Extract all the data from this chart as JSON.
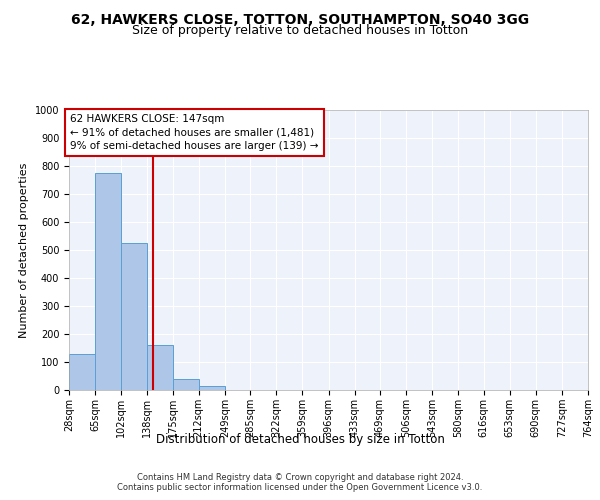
{
  "title1": "62, HAWKERS CLOSE, TOTTON, SOUTHAMPTON, SO40 3GG",
  "title2": "Size of property relative to detached houses in Totton",
  "xlabel": "Distribution of detached houses by size in Totton",
  "ylabel": "Number of detached properties",
  "bar_values": [
    130,
    775,
    525,
    160,
    38,
    15,
    0,
    0,
    0,
    0,
    0,
    0,
    0,
    0,
    0,
    0,
    0,
    0,
    0,
    0
  ],
  "bin_edges": [
    28,
    65,
    102,
    138,
    175,
    212,
    249,
    285,
    322,
    359,
    396,
    433,
    469,
    506,
    543,
    580,
    616,
    653,
    690,
    727,
    764
  ],
  "tick_labels": [
    "28sqm",
    "65sqm",
    "102sqm",
    "138sqm",
    "175sqm",
    "212sqm",
    "249sqm",
    "285sqm",
    "322sqm",
    "359sqm",
    "396sqm",
    "433sqm",
    "469sqm",
    "506sqm",
    "543sqm",
    "580sqm",
    "616sqm",
    "653sqm",
    "690sqm",
    "727sqm",
    "764sqm"
  ],
  "bar_color": "#aec6e8",
  "bar_edge_color": "#5a9fd4",
  "vline_x": 147,
  "vline_color": "#cc0000",
  "annotation_line1": "62 HAWKERS CLOSE: 147sqm",
  "annotation_line2": "← 91% of detached houses are smaller (1,481)",
  "annotation_line3": "9% of semi-detached houses are larger (139) →",
  "annotation_box_color": "#cc0000",
  "ylim": [
    0,
    1000
  ],
  "yticks": [
    0,
    100,
    200,
    300,
    400,
    500,
    600,
    700,
    800,
    900,
    1000
  ],
  "background_color": "#eef2fb",
  "footer": "Contains HM Land Registry data © Crown copyright and database right 2024.\nContains public sector information licensed under the Open Government Licence v3.0.",
  "title1_fontsize": 10,
  "title2_fontsize": 9,
  "xlabel_fontsize": 8.5,
  "ylabel_fontsize": 8,
  "tick_fontsize": 7,
  "annotation_fontsize": 7.5,
  "footer_fontsize": 6
}
